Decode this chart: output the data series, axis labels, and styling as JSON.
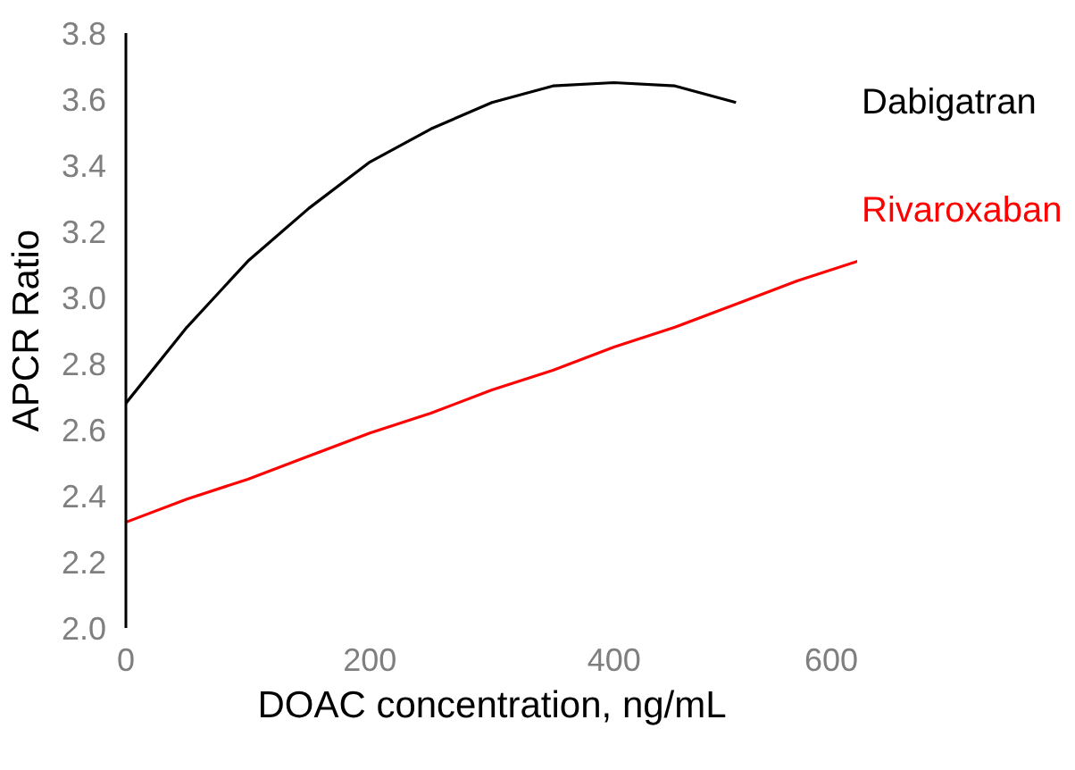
{
  "chart_data": {
    "type": "line",
    "xlabel": "DOAC concentration, ng/mL",
    "ylabel": "APCR Ratio",
    "x": [
      0,
      50,
      100,
      150,
      200,
      250,
      300,
      350,
      400,
      450,
      500,
      550,
      600
    ],
    "series": [
      {
        "name": "Dabigatran",
        "color": "#000000",
        "values": [
          2.68,
          2.91,
          3.11,
          3.27,
          3.41,
          3.51,
          3.59,
          3.64,
          3.65,
          3.64,
          3.59,
          null,
          null
        ]
      },
      {
        "name": "Rivaroxaban",
        "color": "#ff0000",
        "values": [
          2.32,
          2.39,
          2.45,
          2.52,
          2.59,
          2.65,
          2.72,
          2.78,
          2.85,
          2.91,
          2.98,
          3.05,
          3.11
        ]
      }
    ],
    "xlim": [
      0,
      600
    ],
    "xticks": [
      0,
      200,
      400,
      600
    ],
    "ylim": [
      2.0,
      3.8
    ],
    "yticks": [
      {
        "value": 2.0,
        "label": "2.0"
      },
      {
        "value": 2.2,
        "label": "2.2"
      },
      {
        "value": 2.4,
        "label": "2.4"
      },
      {
        "value": 2.6,
        "label": "2.6"
      },
      {
        "value": 2.8,
        "label": "2.8"
      },
      {
        "value": 3.0,
        "label": "3.0"
      },
      {
        "value": 3.2,
        "label": "3.2"
      },
      {
        "value": 3.4,
        "label": "3.4"
      },
      {
        "value": 3.6,
        "label": "3.6"
      },
      {
        "value": 3.8,
        "label": "3.8"
      }
    ],
    "grid": false,
    "legend": false,
    "marker": "none",
    "line_style": "solid"
  }
}
